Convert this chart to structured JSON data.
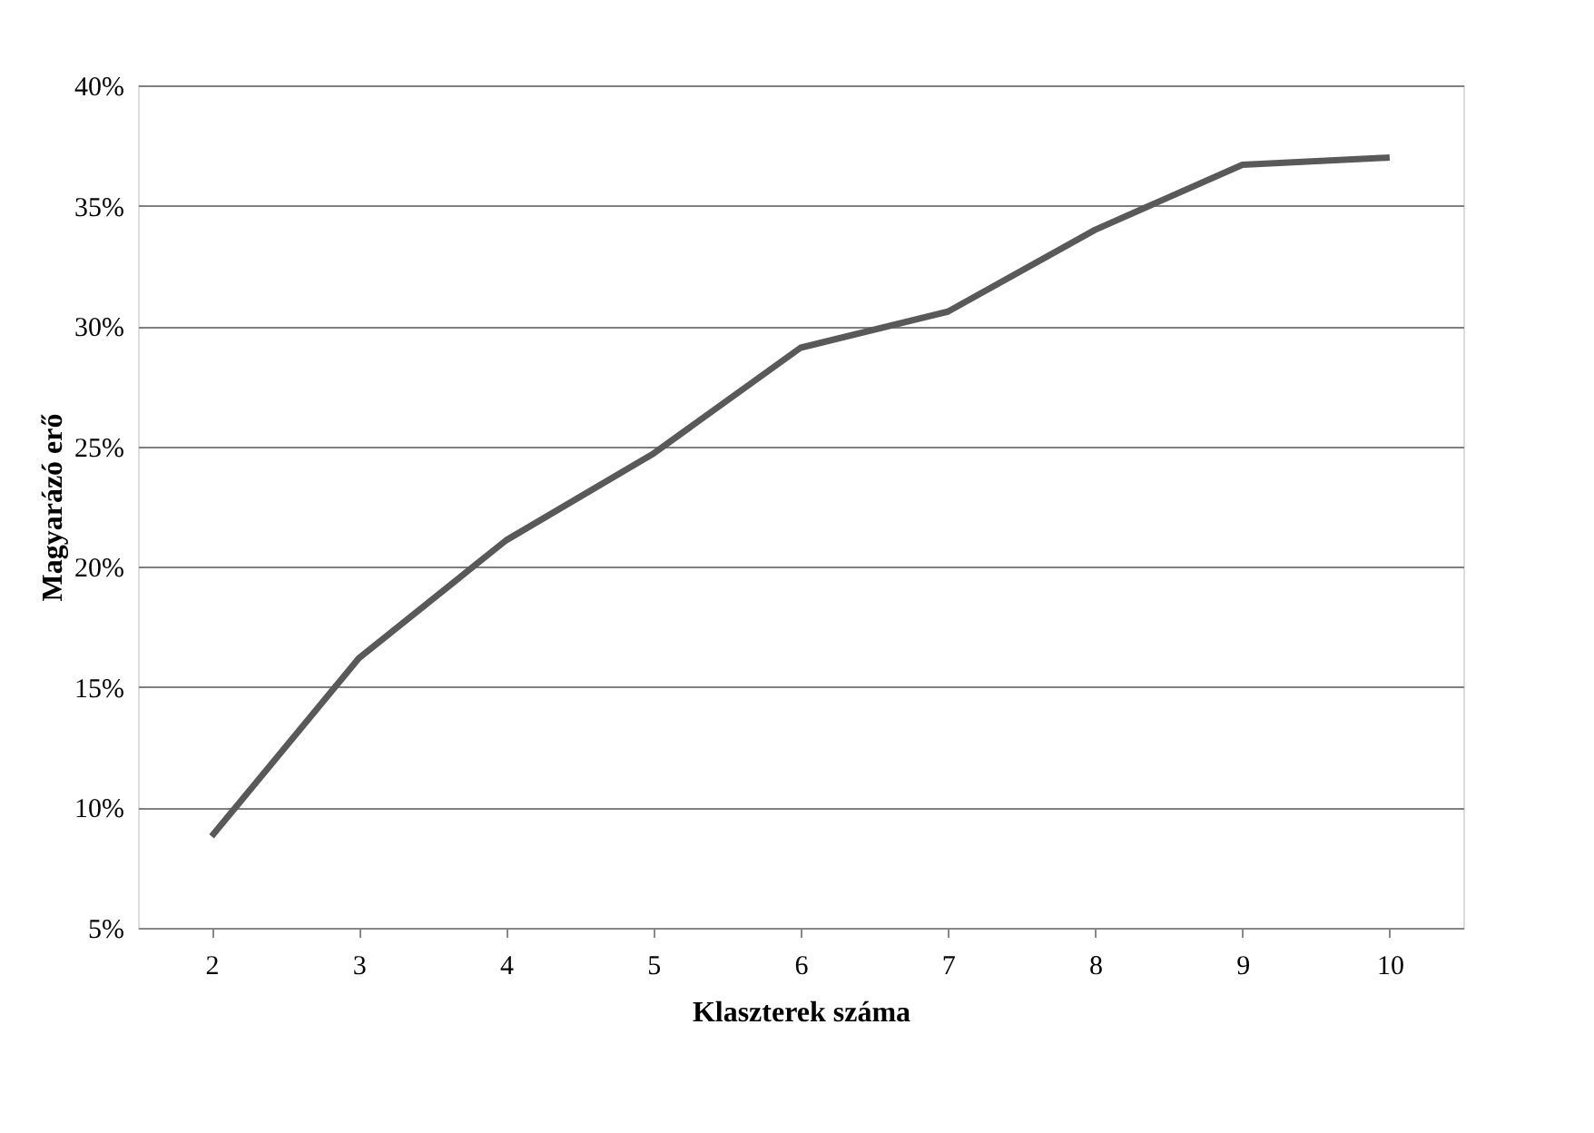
{
  "chart_data": {
    "type": "line",
    "xlabel": "Klaszterek száma",
    "ylabel": "Magyarázó erő",
    "categories": [
      "2",
      "3",
      "4",
      "5",
      "6",
      "7",
      "8",
      "9",
      "10"
    ],
    "series": [
      {
        "color": "#595959",
        "values": [
          8.8,
          16.2,
          21.1,
          24.7,
          29.1,
          30.6,
          34.0,
          36.7,
          37.0
        ]
      }
    ],
    "ylim": [
      5,
      40
    ],
    "yticks": [
      {
        "value": 5,
        "label": "5%"
      },
      {
        "value": 10,
        "label": "10%"
      },
      {
        "value": 15,
        "label": "15%"
      },
      {
        "value": 20,
        "label": "20%"
      },
      {
        "value": 25,
        "label": "25%"
      },
      {
        "value": 30,
        "label": "30%"
      },
      {
        "value": 35,
        "label": "35%"
      },
      {
        "value": 40,
        "label": "40%"
      }
    ],
    "grid": "y",
    "marker": "none",
    "line_style": "solid"
  }
}
